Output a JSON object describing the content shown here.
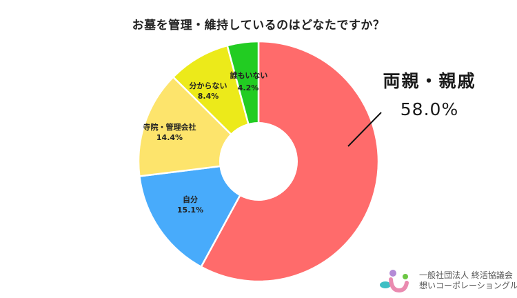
{
  "title": "お墓を管理・維持しているのはどなたですか？",
  "chart_data": {
    "type": "pie",
    "subtype": "donut",
    "title": "お墓を管理・維持しているのはどなたですか？",
    "start_angle": "top (12 o'clock), clockwise",
    "categories": [
      "両親・親戚",
      "自分",
      "寺院・管理会社",
      "分からない",
      "誰もいない"
    ],
    "values": [
      58.0,
      15.1,
      14.4,
      8.4,
      4.2
    ],
    "unit": "%",
    "colors": [
      "#ff6b6b",
      "#48abfb",
      "#fde46c",
      "#ecea1a",
      "#22cc22"
    ],
    "labels": [
      {
        "name": "両親・親戚",
        "pct": "58.0%",
        "placement": "external"
      },
      {
        "name": "自分",
        "pct": "15.1%",
        "placement": "inside"
      },
      {
        "name": "寺院・管理会社",
        "pct": "14.4%",
        "placement": "inside"
      },
      {
        "name": "分からない",
        "pct": "8.4%",
        "placement": "inside"
      },
      {
        "name": "誰もいない",
        "pct": "4.2%",
        "placement": "inside"
      }
    ],
    "legend": "none"
  },
  "external_label": {
    "name": "両親・親戚",
    "pct": "58.0%"
  },
  "logo": {
    "line1": "一般社団法人 終活協議会",
    "line2": "想いコーポレーショングループ",
    "colors": {
      "purple": "#b48ad6",
      "green": "#6cc644",
      "pink": "#ea8bb0",
      "teal": "#3fbfc4"
    }
  }
}
